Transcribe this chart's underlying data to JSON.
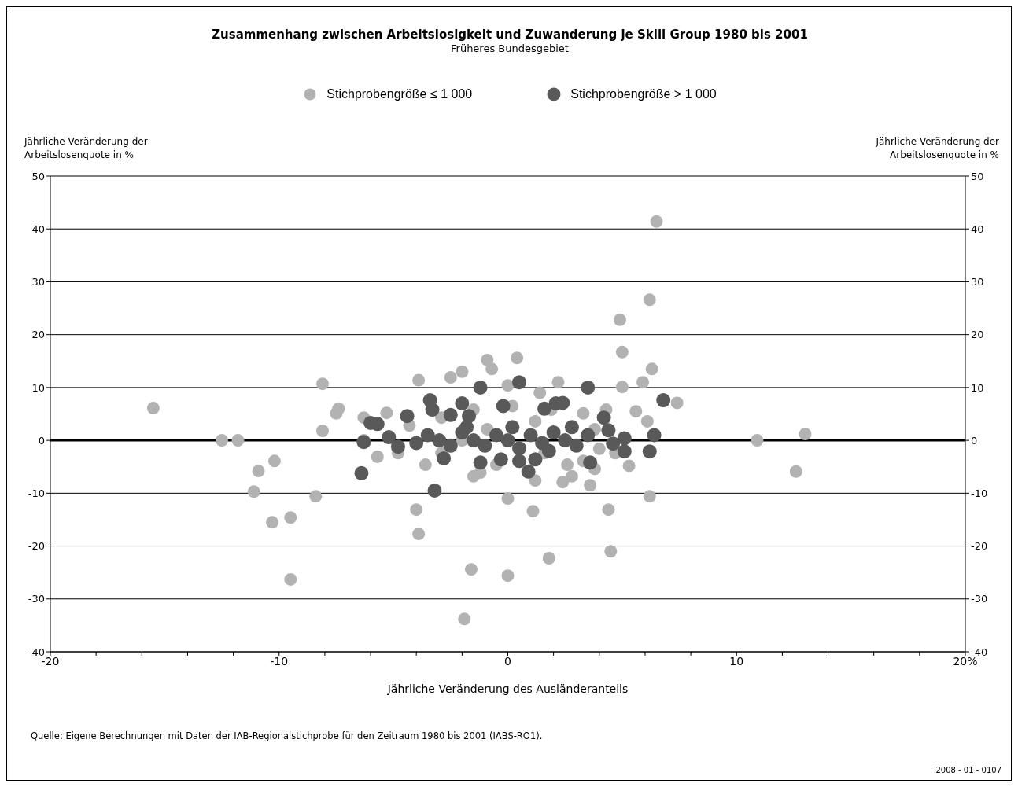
{
  "chart_data": {
    "type": "scatter",
    "title": "Zusammenhang zwischen Arbeitslosigkeit und Zuwanderung je Skill Group 1980 bis 2001",
    "subtitle": "Früheres Bundesgebiet",
    "xlabel": "Jährliche Veränderung des Ausländeranteils",
    "ylabel": "Jährliche Veränderung der Arbeitslosenquote in %",
    "y2label": "Jährliche Veränderung der Arbeitslosenquote in %",
    "annotations": [
      "Quelle: Eigene Berechnungen mit Daten der IAB-Regionalstichprobe für den Zeitraum 1980 bis 2001 (IABS-RO1).",
      "2008 - 01 - 0107"
    ],
    "xlim": [
      -20,
      20
    ],
    "xticks": [
      -20,
      {
        "value": -18,
        "label": null
      },
      {
        "value": -16,
        "label": null
      },
      {
        "value": -14,
        "label": null
      },
      {
        "value": -12,
        "label": null
      },
      -10,
      {
        "value": -8,
        "label": null
      },
      {
        "value": -6,
        "label": null
      },
      {
        "value": -4,
        "label": null
      },
      {
        "value": -2,
        "label": null
      },
      0,
      {
        "value": 2,
        "label": null
      },
      {
        "value": 4,
        "label": null
      },
      {
        "value": 6,
        "label": null
      },
      {
        "value": 8,
        "label": null
      },
      10,
      {
        "value": 12,
        "label": null
      },
      {
        "value": 14,
        "label": null
      },
      {
        "value": 16,
        "label": null
      },
      {
        "value": 18,
        "label": null
      },
      {
        "value": 20,
        "label": "20%"
      }
    ],
    "ylim": [
      -40,
      50
    ],
    "yticks": [
      -40,
      -30,
      -20,
      -10,
      0,
      10,
      20,
      30,
      40,
      50
    ],
    "y2lim": [
      -40,
      50
    ],
    "y2ticks": [
      -40,
      -30,
      -20,
      -10,
      0,
      10,
      20,
      30,
      40,
      50
    ],
    "grid": "y",
    "legend": "top",
    "marker": "circle",
    "ref_lines": [
      {
        "axis": "y",
        "value": 0,
        "color": "#000000"
      }
    ],
    "series": [
      {
        "name": "Stichprobengröße ≤ 1 000",
        "color": "#b2b2b2",
        "x": [
          -15.5,
          -12.5,
          -11.8,
          -10.9,
          -11.1,
          -10.2,
          -10.3,
          -9.5,
          -9.5,
          -8.4,
          -8.1,
          -8.1,
          -7.5,
          -7.4,
          -6.3,
          -6.3,
          -5.3,
          -4.0,
          -3.9,
          -3.9,
          -3.3,
          -2.5,
          -2.0,
          -0.9,
          -0.7,
          0.4,
          0.0,
          -1.6,
          -1.9,
          0.0,
          0.0,
          1.1,
          1.8,
          2.2,
          1.4,
          2.4,
          2.8,
          3.8,
          3.6,
          4.4,
          4.5,
          4.9,
          5.0,
          5.0,
          5.3,
          6.2,
          6.5,
          6.3,
          5.9,
          6.2,
          5.6,
          6.1,
          7.4,
          10.9,
          13.0,
          12.6,
          -5.7,
          -4.8,
          -3.6,
          -2.9,
          -2.0,
          -1.2,
          -0.5,
          0.5,
          1.6,
          2.6,
          3.3,
          4.0,
          4.7,
          -2.9,
          -1.5,
          0.2,
          1.9,
          3.3,
          4.3,
          -4.3,
          -0.9,
          1.2,
          3.8,
          -1.5,
          1.2
        ],
        "values": [
          6.1,
          0,
          0,
          -5.8,
          -9.7,
          -3.9,
          -15.5,
          -14.6,
          -26.3,
          -10.6,
          1.8,
          10.7,
          5.1,
          6.0,
          4.3,
          0,
          5.2,
          -13.1,
          -17.7,
          11.4,
          null,
          11.9,
          13,
          15.2,
          13.5,
          15.6,
          10.4,
          -24.4,
          -33.8,
          -25.6,
          -11,
          -13.4,
          -22.3,
          11,
          9.0,
          -7.9,
          -6.8,
          -5.4,
          -8.5,
          -13.1,
          -21,
          22.8,
          16.7,
          10.1,
          -4.8,
          26.6,
          41.4,
          13.5,
          11,
          -10.6,
          5.5,
          3.6,
          7.1,
          0,
          1.2,
          -5.9,
          -3.1,
          -2.4,
          -4.6,
          -2.4,
          0,
          -6.1,
          -4.6,
          null,
          -2.4,
          -4.6,
          -3.9,
          -1.6,
          -2.4,
          4.3,
          5.8,
          6.5,
          5.8,
          5.1,
          5.8,
          2.8,
          2.1,
          3.6,
          2.1,
          -6.8,
          -7.6
        ]
      },
      {
        "name": "Stichprobengröße > 1 000",
        "color": "#595959",
        "x": [
          -6.4,
          -6.3,
          -6.0,
          -5.7,
          -5.2,
          -4.8,
          -4.4,
          -3.4,
          -3.3,
          -2.0,
          -2.5,
          -1.7,
          -1.2,
          -0.2,
          0.5,
          1.6,
          2.1,
          2.4,
          3.5,
          6.8,
          4.2,
          4.4,
          5.1,
          6.4,
          6.2,
          5.1,
          3.6,
          0.9,
          -3.2,
          -1.2,
          -2.8,
          -0.3,
          0.5,
          1.2,
          4.6,
          -3.5,
          -3.0,
          -2.5,
          -2.0,
          -1.5,
          -1.0,
          -0.5,
          0.0,
          0.5,
          1.0,
          1.5,
          2.0,
          2.5,
          3.0,
          3.5,
          -4.0,
          0.2,
          1.8,
          -1.8,
          2.8
        ],
        "values": [
          -6.2,
          -0.3,
          3.3,
          3.1,
          0.6,
          -1.2,
          4.6,
          7.6,
          5.8,
          7.0,
          4.8,
          4.6,
          10.0,
          6.5,
          11.0,
          6.0,
          7.0,
          7.1,
          10.0,
          7.6,
          4.3,
          1.9,
          0.4,
          1.0,
          -2.1,
          -2.1,
          -4.2,
          -5.9,
          -9.5,
          -4.2,
          -3.4,
          -3.6,
          -3.9,
          -3.6,
          -0.6,
          1,
          0,
          -1,
          1.5,
          0,
          -1,
          1,
          0,
          -1.5,
          1,
          -0.5,
          1.5,
          0,
          -1,
          1,
          -0.5,
          2.5,
          -2,
          2.5,
          2.5
        ]
      }
    ]
  }
}
